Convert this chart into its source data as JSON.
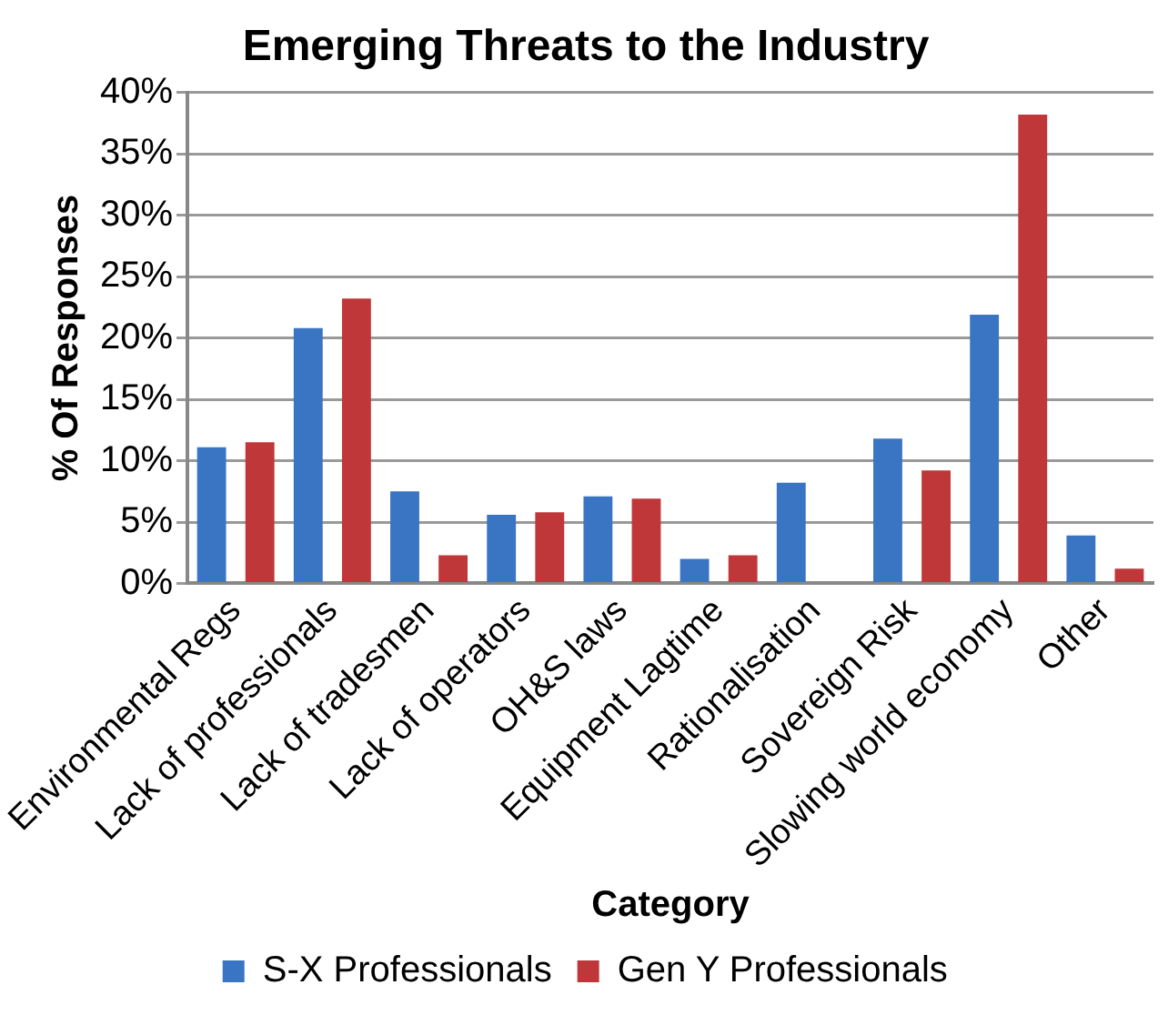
{
  "chart_data": {
    "type": "bar",
    "title": "Emerging Threats to the Industry",
    "xlabel": "Category",
    "ylabel": "% Of Responses",
    "categories": [
      "Environmental Regs",
      "Lack of professionals",
      "Lack of tradesmen",
      "Lack of operators",
      "OH&S laws",
      "Equipment Lagtime",
      "Rationalisation",
      "Sovereign Risk",
      "Slowing world economy",
      "Other"
    ],
    "series": [
      {
        "name": "S-X Professionals",
        "color": "#3a75c4",
        "values": [
          11.1,
          20.8,
          7.5,
          5.6,
          7.1,
          2.0,
          8.2,
          11.8,
          21.9,
          3.9
        ]
      },
      {
        "name": "Gen Y Professionals",
        "color": "#c0373a",
        "values": [
          11.5,
          23.2,
          2.3,
          5.8,
          6.9,
          2.3,
          0,
          9.2,
          38.2,
          1.2
        ]
      }
    ],
    "ylim": [
      0,
      40
    ],
    "yticks": [
      {
        "value": 0,
        "label": "0%"
      },
      {
        "value": 5,
        "label": "5%"
      },
      {
        "value": 10,
        "label": "10%"
      },
      {
        "value": 15,
        "label": "15%"
      },
      {
        "value": 20,
        "label": "20%"
      },
      {
        "value": 25,
        "label": "25%"
      },
      {
        "value": 30,
        "label": "30%"
      },
      {
        "value": 35,
        "label": "35%"
      },
      {
        "value": 40,
        "label": "40%"
      }
    ],
    "grid": "y",
    "legend": "bottom"
  }
}
